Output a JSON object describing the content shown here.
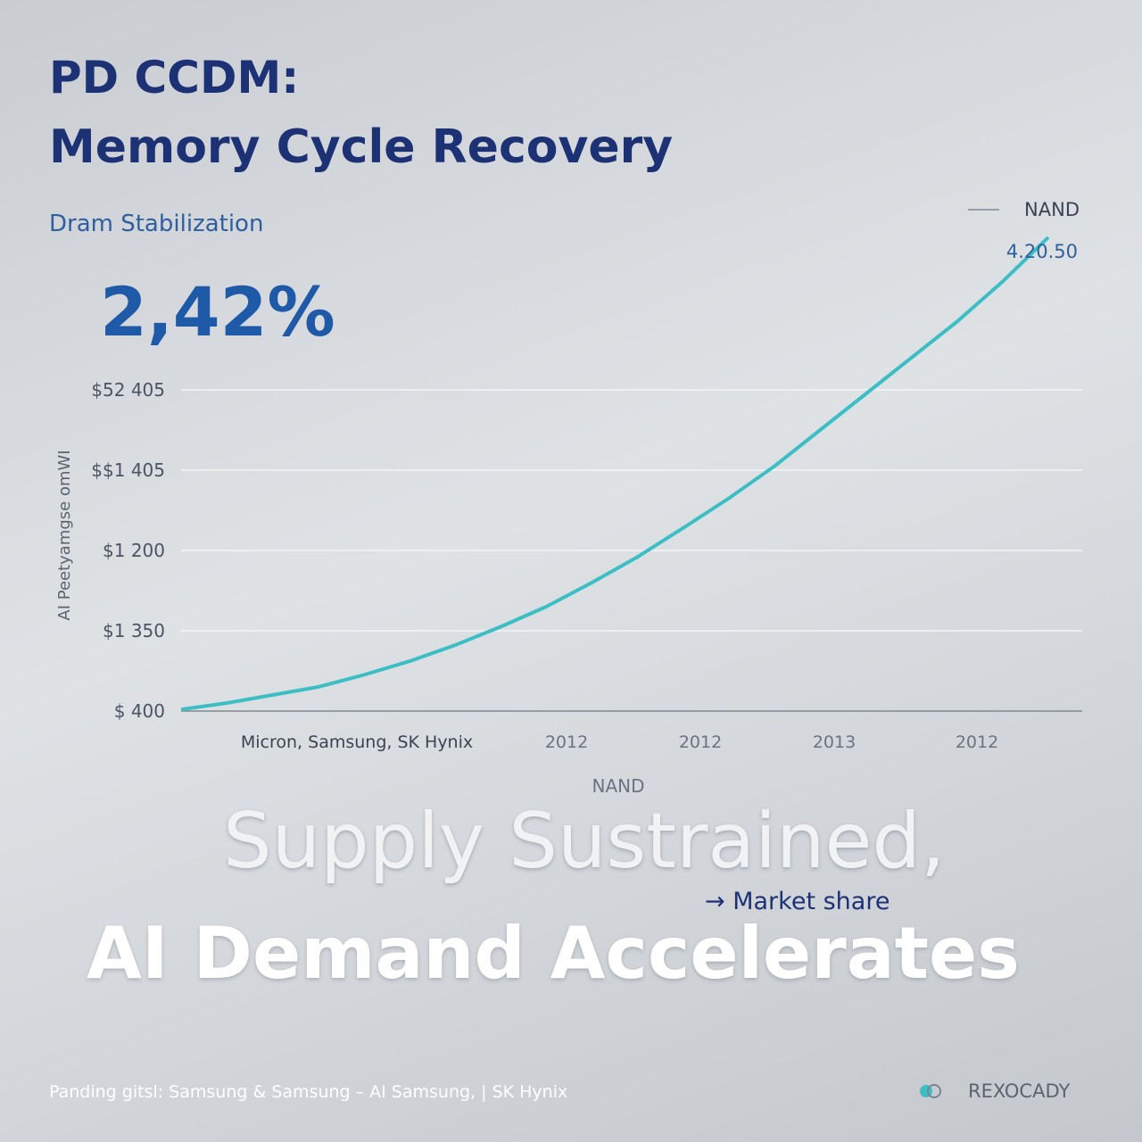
{
  "title": "PD CCDM:",
  "subtitle": "Memory Cycle Recovery",
  "section_label": "Dram Stabilization",
  "headline_value": "2,42%",
  "chart_data": {
    "type": "line",
    "ylabel": "AI Peetyamgse omWI",
    "xlabel": "NAND",
    "x_note": "Micron, Samsung, SK Hynix",
    "x_tick_labels": [
      "2012",
      "2012",
      "2013",
      "2012"
    ],
    "ylim": [
      0,
      6
    ],
    "yticks": [
      {
        "value": 0,
        "label": "$ 400"
      },
      {
        "value": 1,
        "label": "$1 350"
      },
      {
        "value": 2,
        "label": "$1 200"
      },
      {
        "value": 3,
        "label": "$$1 405"
      },
      {
        "value": 4,
        "label": "$52 405"
      }
    ],
    "grid": true,
    "series": [
      {
        "name": "NAND",
        "color": "#3bbfc4",
        "values": [
          0.02,
          0.1,
          0.2,
          0.3,
          0.45,
          0.62,
          0.82,
          1.05,
          1.3,
          1.6,
          1.92,
          2.28,
          2.65,
          3.05,
          3.5,
          3.95,
          4.4,
          4.85,
          5.35,
          5.9
        ]
      }
    ],
    "annotation": "4.20.50"
  },
  "overlay_line1": "Supply Sustrained,",
  "overlay_arrow_label": "Market share",
  "overlay_line2": "AI Demand Accelerates",
  "footer": "Panding gitsl: Samsung & Samsung – AI Samsung, | SK Hynix",
  "brand": "REXOCADY"
}
